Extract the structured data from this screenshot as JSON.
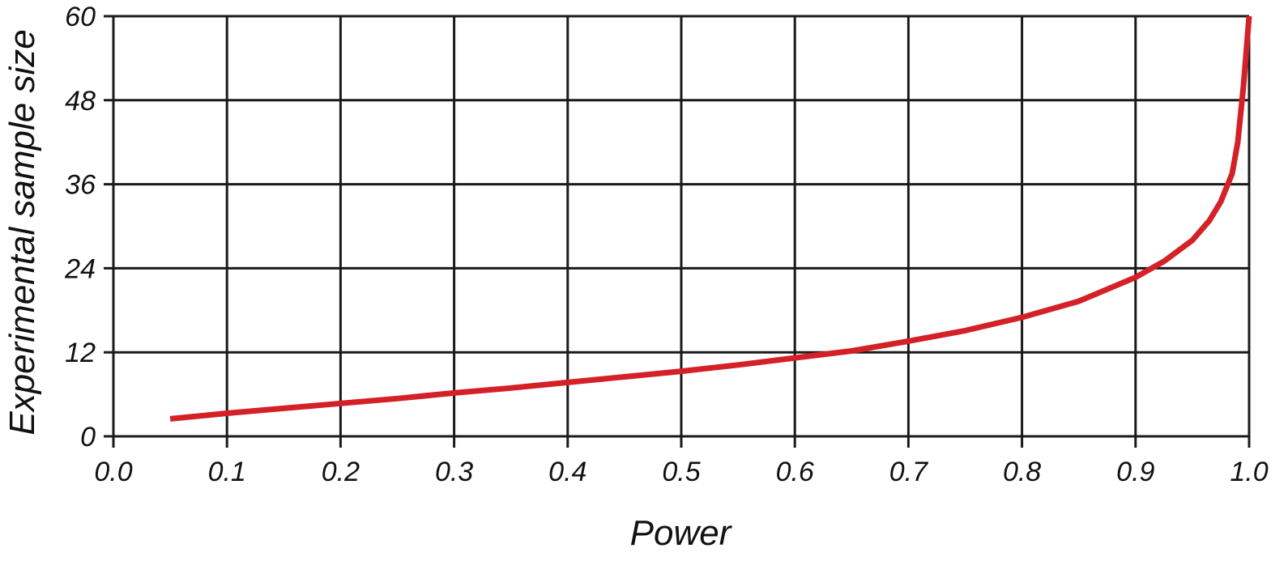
{
  "chart_data": {
    "type": "line",
    "title": "",
    "xlabel": "Power",
    "ylabel": "Experimental sample size",
    "xlim": [
      0.0,
      1.0
    ],
    "ylim": [
      0,
      60
    ],
    "x_ticks": [
      "0.0",
      "0.1",
      "0.2",
      "0.3",
      "0.4",
      "0.5",
      "0.6",
      "0.7",
      "0.8",
      "0.9",
      "1.0"
    ],
    "y_ticks": [
      "0",
      "12",
      "24",
      "36",
      "48",
      "60"
    ],
    "grid": true,
    "legend": "none",
    "colors": {
      "series": "#d42027",
      "grid": "#1a1a1a"
    },
    "series": [
      {
        "x": [
          0.05,
          0.1,
          0.15,
          0.2,
          0.25,
          0.3,
          0.35,
          0.4,
          0.45,
          0.5,
          0.55,
          0.6,
          0.65,
          0.7,
          0.75,
          0.8,
          0.85,
          0.9,
          0.925,
          0.95,
          0.965,
          0.975,
          0.985,
          0.99,
          0.995,
          1.0
        ],
        "values": [
          2.5,
          3.3,
          4.0,
          4.7,
          5.4,
          6.2,
          6.9,
          7.7,
          8.5,
          9.3,
          10.2,
          11.2,
          12.2,
          13.6,
          15.1,
          17.0,
          19.3,
          22.7,
          25.0,
          28.0,
          30.8,
          33.5,
          37.5,
          42.0,
          50.0,
          60.0
        ]
      }
    ]
  }
}
